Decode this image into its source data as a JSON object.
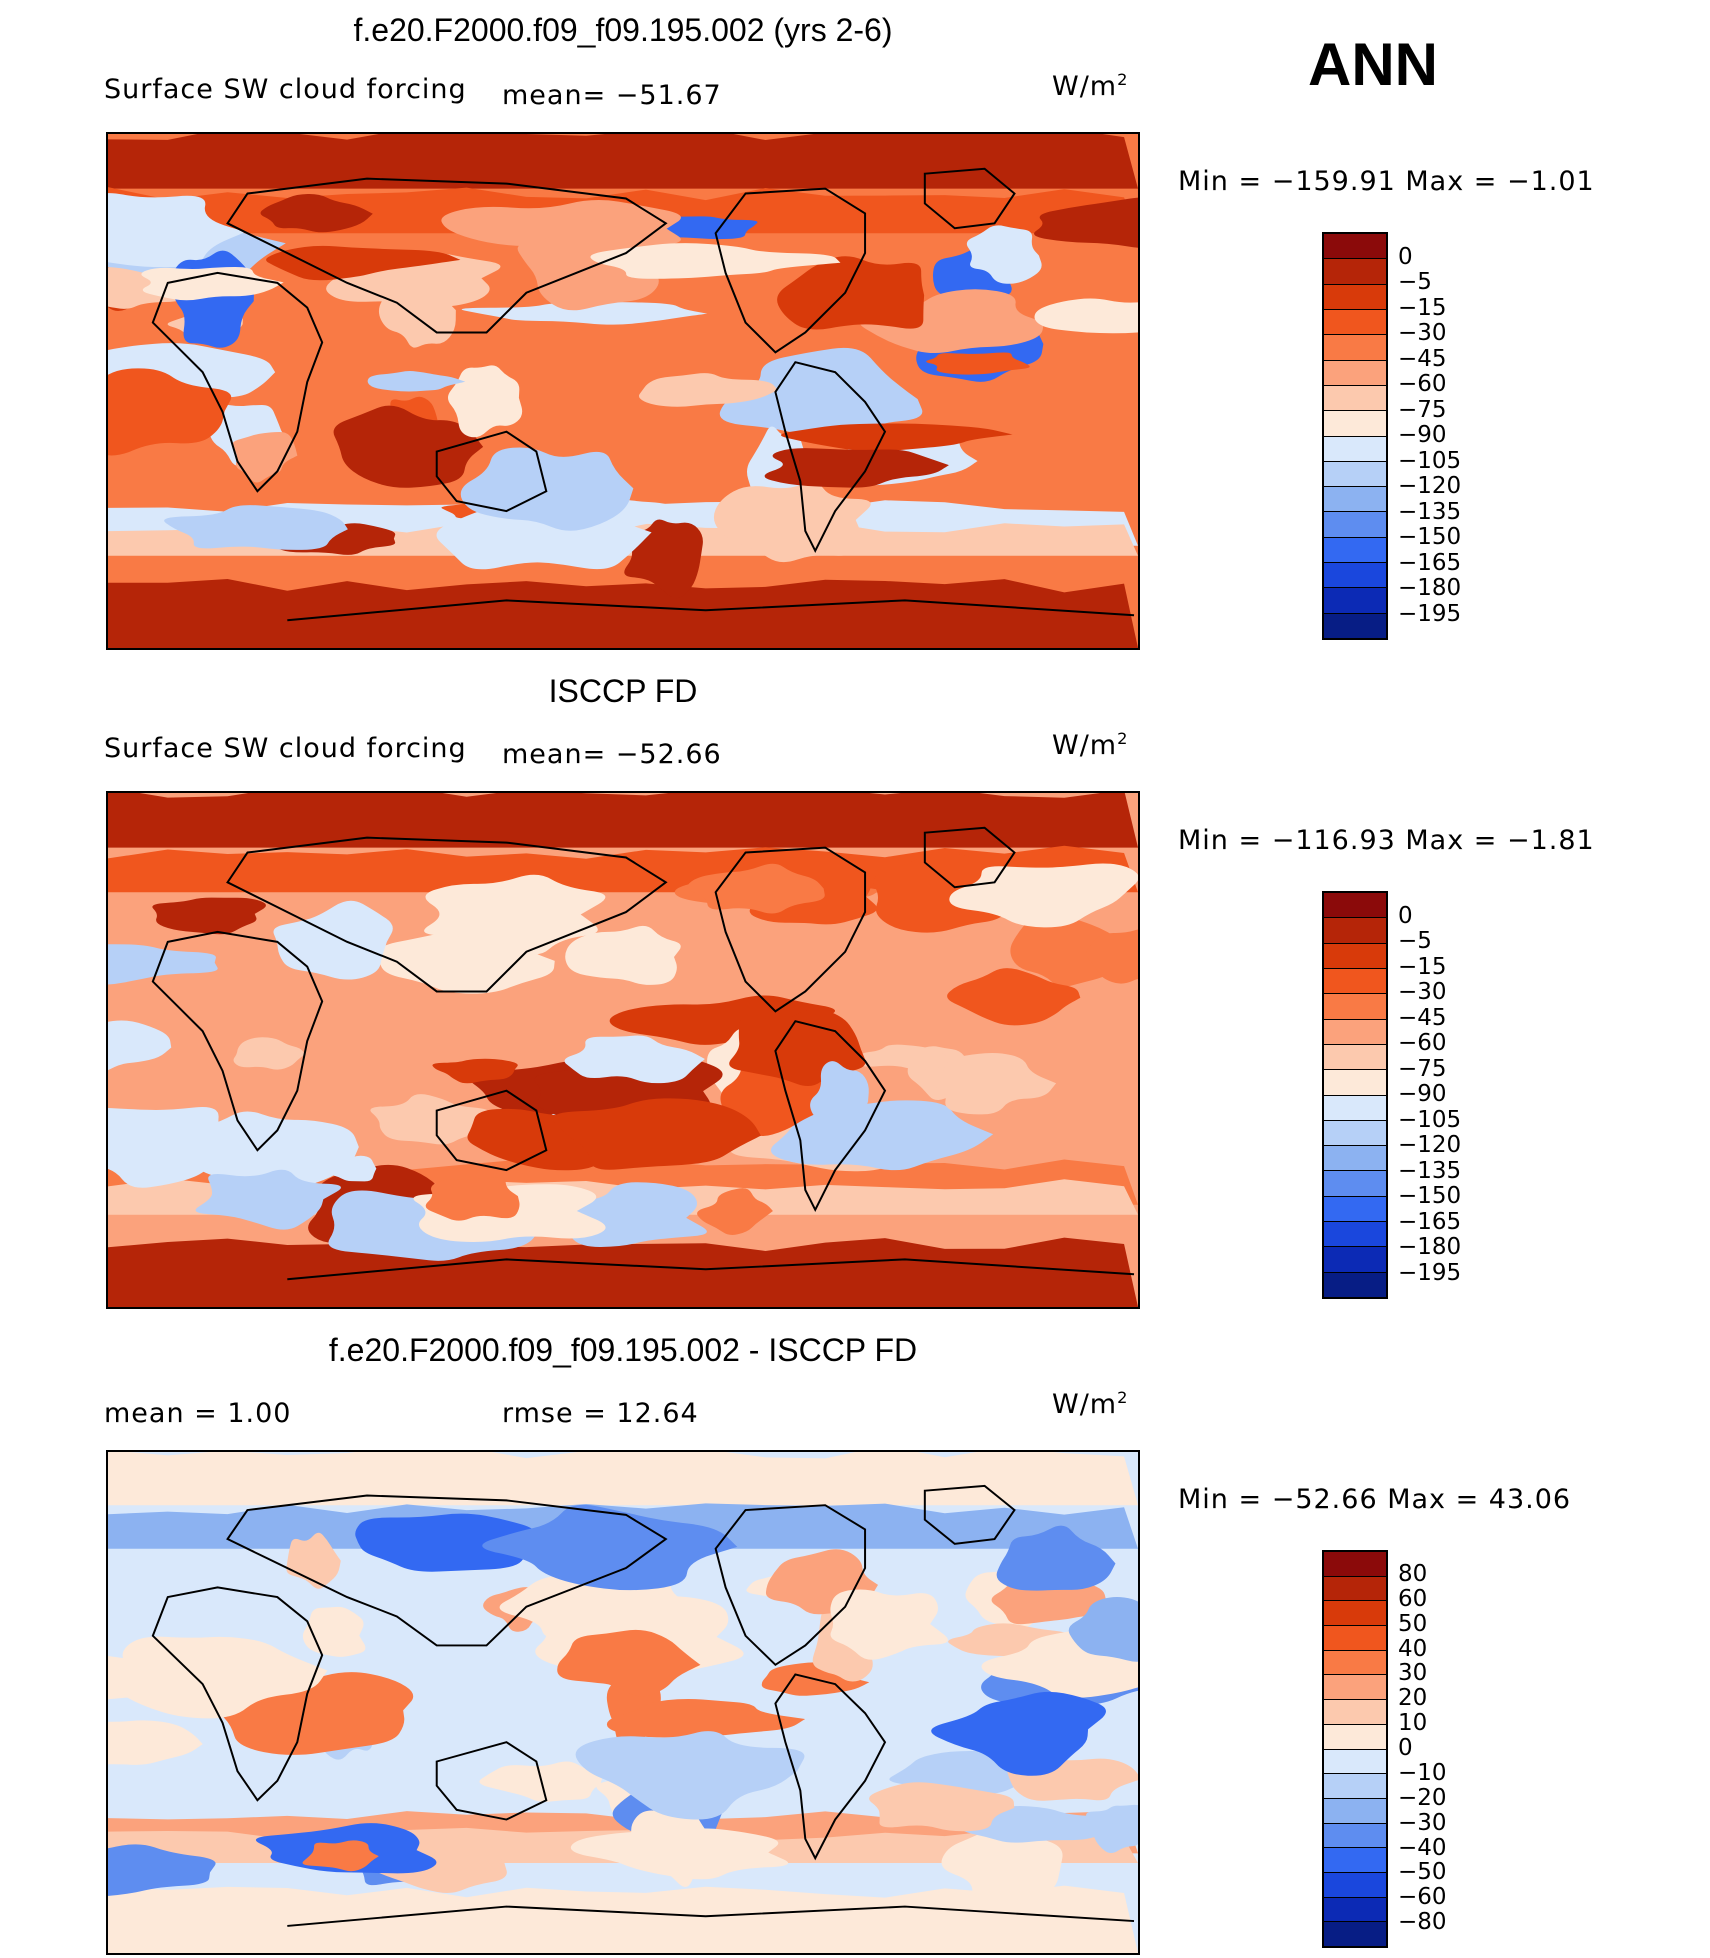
{
  "header": {
    "season": "ANN"
  },
  "panels": [
    {
      "title": "f.e20.F2000.f09_f09.195.002 (yrs 2-6)",
      "variable": "Surface SW cloud forcing",
      "stat1": "mean= −51.67",
      "stat2": "",
      "units_base": "W/m",
      "units_exp": "2",
      "minmax": "Min  =  −159.91  Max  =    −1.01",
      "palette": [
        "#8b0a0a",
        "#b52508",
        "#d83a0a",
        "#f0561e",
        "#f97a45",
        "#fba27c",
        "#fcc9ae",
        "#fde9d9",
        "#d9e8fb",
        "#b6d0f7",
        "#8cb2f1",
        "#5e8df0",
        "#3369f2",
        "#1a47dd",
        "#0c2ab5",
        "#071d85"
      ],
      "levels": [
        "0",
        "−5",
        "−15",
        "−30",
        "−45",
        "−60",
        "−75",
        "−90",
        "−105",
        "−120",
        "−135",
        "−150",
        "−165",
        "−180",
        "−195"
      ],
      "map_layers": [
        "#f97a45",
        "#d83a0a",
        "#b52508",
        "#fcc9ae",
        "#d9e8fb",
        "#f0561e",
        "#fba27c",
        "#fde9d9",
        "#b6d0f7",
        "#3369f2"
      ]
    },
    {
      "title": "ISCCP FD",
      "variable": "Surface SW cloud forcing",
      "stat1": "mean= −52.66",
      "stat2": "",
      "units_base": "W/m",
      "units_exp": "2",
      "minmax": "Min  =  −116.93  Max  =    −1.81",
      "palette": [
        "#8b0a0a",
        "#b52508",
        "#d83a0a",
        "#f0561e",
        "#f97a45",
        "#fba27c",
        "#fcc9ae",
        "#fde9d9",
        "#d9e8fb",
        "#b6d0f7",
        "#8cb2f1",
        "#5e8df0",
        "#3369f2",
        "#1a47dd",
        "#0c2ab5",
        "#071d85"
      ],
      "levels": [
        "0",
        "−5",
        "−15",
        "−30",
        "−45",
        "−60",
        "−75",
        "−90",
        "−105",
        "−120",
        "−135",
        "−150",
        "−165",
        "−180",
        "−195"
      ],
      "map_layers": [
        "#fba27c",
        "#d83a0a",
        "#b52508",
        "#fcc9ae",
        "#f97a45",
        "#f0561e",
        "#fde9d9",
        "#d9e8fb",
        "#fcc9ae",
        "#b6d0f7"
      ]
    },
    {
      "title": "f.e20.F2000.f09_f09.195.002 - ISCCP FD",
      "variable": "mean  =      1.00",
      "stat1": "rmse  =    12.64",
      "stat2": "",
      "units_base": "W/m",
      "units_exp": "2",
      "minmax": "Min  =  −52.66  Max  =    43.06",
      "palette": [
        "#8b0a0a",
        "#b52508",
        "#d83a0a",
        "#f0561e",
        "#f97a45",
        "#fba27c",
        "#fcc9ae",
        "#fde9d9",
        "#d9e8fb",
        "#b6d0f7",
        "#8cb2f1",
        "#5e8df0",
        "#3369f2",
        "#1a47dd",
        "#0c2ab5",
        "#071d85"
      ],
      "levels": [
        "80",
        "60",
        "50",
        "40",
        "30",
        "20",
        "10",
        "0",
        "−10",
        "−20",
        "−30",
        "−40",
        "−50",
        "−60",
        "−80"
      ],
      "map_layers": [
        "#d9e8fb",
        "#b6d0f7",
        "#fde9d9",
        "#fcc9ae",
        "#fba27c",
        "#8cb2f1",
        "#f97a45",
        "#5e8df0",
        "#fde9d9",
        "#3369f2"
      ]
    }
  ]
}
